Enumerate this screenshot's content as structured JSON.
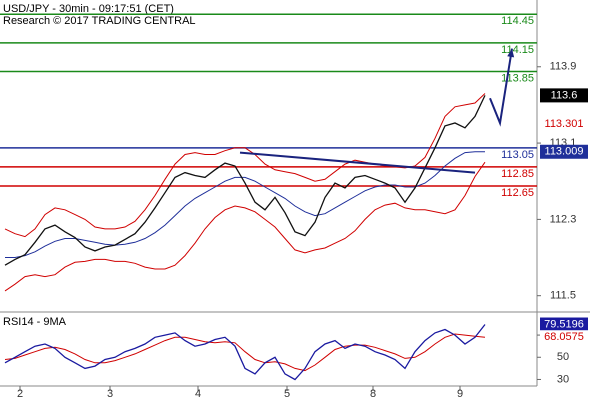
{
  "chart_data": [
    {
      "type": "line",
      "title": "USD/JPY - 30min - 09:17:51 (CET)",
      "subtitle": "Research © 2017 TRADING CENTRAL",
      "x": [
        0,
        1,
        2,
        3,
        4,
        5,
        6,
        7,
        8,
        9,
        10,
        11,
        12,
        13,
        14,
        15,
        16,
        17,
        18,
        19,
        20,
        21,
        22,
        23,
        24,
        25,
        26,
        27,
        28,
        29,
        30,
        31,
        32,
        33,
        34,
        35,
        36,
        37,
        38,
        39,
        40,
        41,
        42,
        43,
        44,
        45,
        46,
        47,
        48
      ],
      "xlim": [
        -0.5,
        53.2
      ],
      "ylim": [
        111.35,
        114.6
      ],
      "yticks": [
        111.5,
        112.3,
        113.1,
        113.9
      ],
      "series": [
        {
          "color": "#d00000",
          "values": [
            112.2,
            112.15,
            112.12,
            112.2,
            112.35,
            112.42,
            112.4,
            112.35,
            112.3,
            112.22,
            112.2,
            112.2,
            112.22,
            112.28,
            112.4,
            112.55,
            112.72,
            112.88,
            112.98,
            113.0,
            112.98,
            112.98,
            113.02,
            113.05,
            113.05,
            112.98,
            112.88,
            112.82,
            112.8,
            112.78,
            112.74,
            112.7,
            112.72,
            112.8,
            112.88,
            112.92,
            112.9,
            112.88,
            112.86,
            112.85,
            112.84,
            112.86,
            112.95,
            113.15,
            113.38,
            113.48,
            113.5,
            113.52,
            113.62
          ]
        },
        {
          "color": "#d00000",
          "values": [
            111.55,
            111.62,
            111.7,
            111.72,
            111.7,
            111.72,
            111.8,
            111.85,
            111.86,
            111.88,
            111.88,
            111.86,
            111.86,
            111.84,
            111.8,
            111.78,
            111.78,
            111.82,
            111.92,
            112.05,
            112.2,
            112.32,
            112.4,
            112.44,
            112.42,
            112.38,
            112.3,
            112.22,
            112.1,
            111.98,
            111.95,
            111.98,
            112.0,
            112.05,
            112.1,
            112.18,
            112.3,
            112.4,
            112.45,
            112.47,
            112.42,
            112.4,
            112.4,
            112.38,
            112.36,
            112.4,
            112.55,
            112.75,
            112.9
          ]
        },
        {
          "color": "#1f2f9a",
          "values": [
            111.9,
            111.9,
            111.92,
            111.96,
            112.02,
            112.07,
            112.1,
            112.1,
            112.08,
            112.06,
            112.04,
            112.03,
            112.04,
            112.06,
            112.1,
            112.16,
            112.24,
            112.34,
            112.44,
            112.52,
            112.58,
            112.64,
            112.7,
            112.74,
            112.74,
            112.7,
            112.64,
            112.58,
            112.52,
            112.44,
            112.38,
            112.34,
            112.36,
            112.42,
            112.48,
            112.54,
            112.6,
            112.64,
            112.66,
            112.66,
            112.64,
            112.64,
            112.68,
            112.76,
            112.86,
            112.94,
            113.0,
            113.01,
            113.009
          ]
        },
        {
          "color": "#111111",
          "values": [
            111.82,
            111.88,
            111.93,
            112.06,
            112.2,
            112.24,
            112.17,
            112.11,
            112.01,
            111.97,
            112.01,
            112.03,
            112.09,
            112.15,
            112.27,
            112.42,
            112.58,
            112.74,
            112.79,
            112.76,
            112.74,
            112.82,
            112.89,
            112.86,
            112.68,
            112.48,
            112.4,
            112.53,
            112.37,
            112.17,
            112.13,
            112.27,
            112.53,
            112.68,
            112.63,
            112.74,
            112.76,
            112.72,
            112.68,
            112.63,
            112.48,
            112.63,
            112.84,
            113.05,
            113.28,
            113.31,
            113.26,
            113.38,
            113.6
          ]
        }
      ],
      "levels": [
        {
          "value": 114.45,
          "color": "#1a8a1a"
        },
        {
          "value": 114.15,
          "color": "#1a8a1a"
        },
        {
          "value": 113.85,
          "color": "#1a8a1a"
        },
        {
          "value": 113.05,
          "color": "#1f2f9a"
        },
        {
          "value": 112.85,
          "color": "#d00000"
        },
        {
          "value": 112.65,
          "color": "#d00000"
        }
      ],
      "trendlines": [
        {
          "x": [
            23.5,
            47
          ],
          "values": [
            113.0,
            112.79
          ],
          "color": "#1a237e",
          "arrow": false
        },
        {
          "x": [
            48.5,
            49.5,
            50.7
          ],
          "values": [
            113.57,
            113.31,
            114.09
          ],
          "color": "#1a237e",
          "arrow": true
        }
      ],
      "price_tags": [
        {
          "value": 113.6,
          "color": "#000000",
          "boxed": true
        },
        {
          "value": 113.301,
          "color": "#d00000",
          "boxed": false
        },
        {
          "value": 113.009,
          "color": "#1f2f9a",
          "boxed": true
        }
      ]
    },
    {
      "type": "line",
      "title": "RSI14 - 9MA",
      "x": [
        0,
        1,
        2,
        3,
        4,
        5,
        6,
        7,
        8,
        9,
        10,
        11,
        12,
        13,
        14,
        15,
        16,
        17,
        18,
        19,
        20,
        21,
        22,
        23,
        24,
        25,
        26,
        27,
        28,
        29,
        30,
        31,
        32,
        33,
        34,
        35,
        36,
        37,
        38,
        39,
        40,
        41,
        42,
        43,
        44,
        45,
        46,
        47,
        48
      ],
      "xlim": [
        -0.5,
        53.2
      ],
      "xticks": [
        {
          "value": 1.5,
          "label": "2"
        },
        {
          "value": 10.5,
          "label": "3"
        },
        {
          "value": 19.3,
          "label": "4"
        },
        {
          "value": 28.2,
          "label": "5"
        },
        {
          "value": 36.8,
          "label": "8"
        },
        {
          "value": 45.5,
          "label": "9"
        }
      ],
      "ylim": [
        25,
        89
      ],
      "yticks": [
        30,
        50,
        70
      ],
      "series": [
        {
          "color": "#d00000",
          "values": [
            48,
            49,
            52,
            55,
            58,
            59,
            57,
            53,
            48,
            45,
            45,
            47,
            50,
            53,
            57,
            61,
            65,
            68,
            68,
            66,
            64,
            63,
            64,
            63,
            55,
            48,
            45,
            46,
            44,
            40,
            38,
            43,
            50,
            57,
            60,
            61,
            61,
            59,
            56,
            53,
            49,
            50,
            55,
            62,
            68,
            71,
            70,
            69,
            68.0575
          ]
        },
        {
          "color": "#1a1aa0",
          "values": [
            45,
            50,
            55,
            60,
            62,
            58,
            50,
            45,
            40,
            42,
            48,
            50,
            55,
            58,
            62,
            68,
            70,
            72,
            65,
            60,
            62,
            66,
            68,
            60,
            40,
            35,
            45,
            50,
            35,
            30,
            40,
            55,
            62,
            65,
            58,
            62,
            60,
            55,
            52,
            48,
            40,
            55,
            65,
            72,
            75,
            70,
            62,
            68,
            79.5196
          ]
        }
      ],
      "price_tags": [
        {
          "value": 79.5196,
          "color": "#1a1aa0",
          "boxed": true
        },
        {
          "value": 68.0575,
          "color": "#d00000",
          "boxed": false
        }
      ]
    }
  ]
}
